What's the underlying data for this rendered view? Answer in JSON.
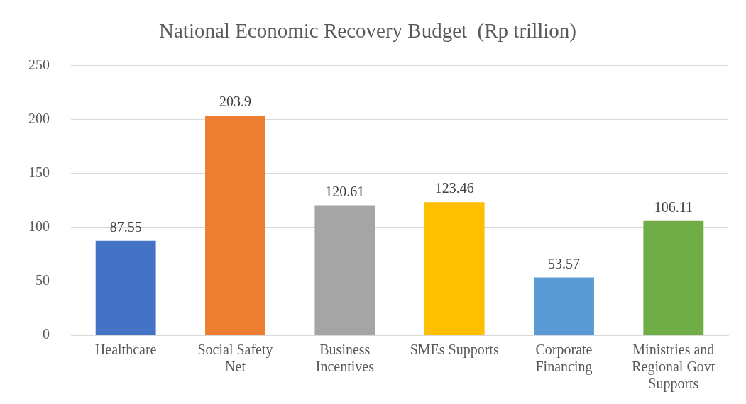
{
  "chart_data": {
    "type": "bar",
    "title": "National Economic Recovery Budget  (Rp trillion)",
    "categories": [
      "Healthcare",
      "Social Safety Net",
      "Business Incentives",
      "SMEs Supports",
      "Corporate Financing",
      "Ministries and Regional Govt Supports"
    ],
    "values": [
      87.55,
      203.9,
      120.61,
      123.46,
      53.57,
      106.11
    ],
    "colors": [
      "#4472c4",
      "#ed7d31",
      "#a5a5a5",
      "#ffc000",
      "#5b9bd5",
      "#70ad47"
    ],
    "ylim": [
      0,
      250
    ],
    "yticks": [
      0,
      50,
      100,
      150,
      200,
      250
    ],
    "grid": "y",
    "legend": false,
    "data_labels": true
  }
}
